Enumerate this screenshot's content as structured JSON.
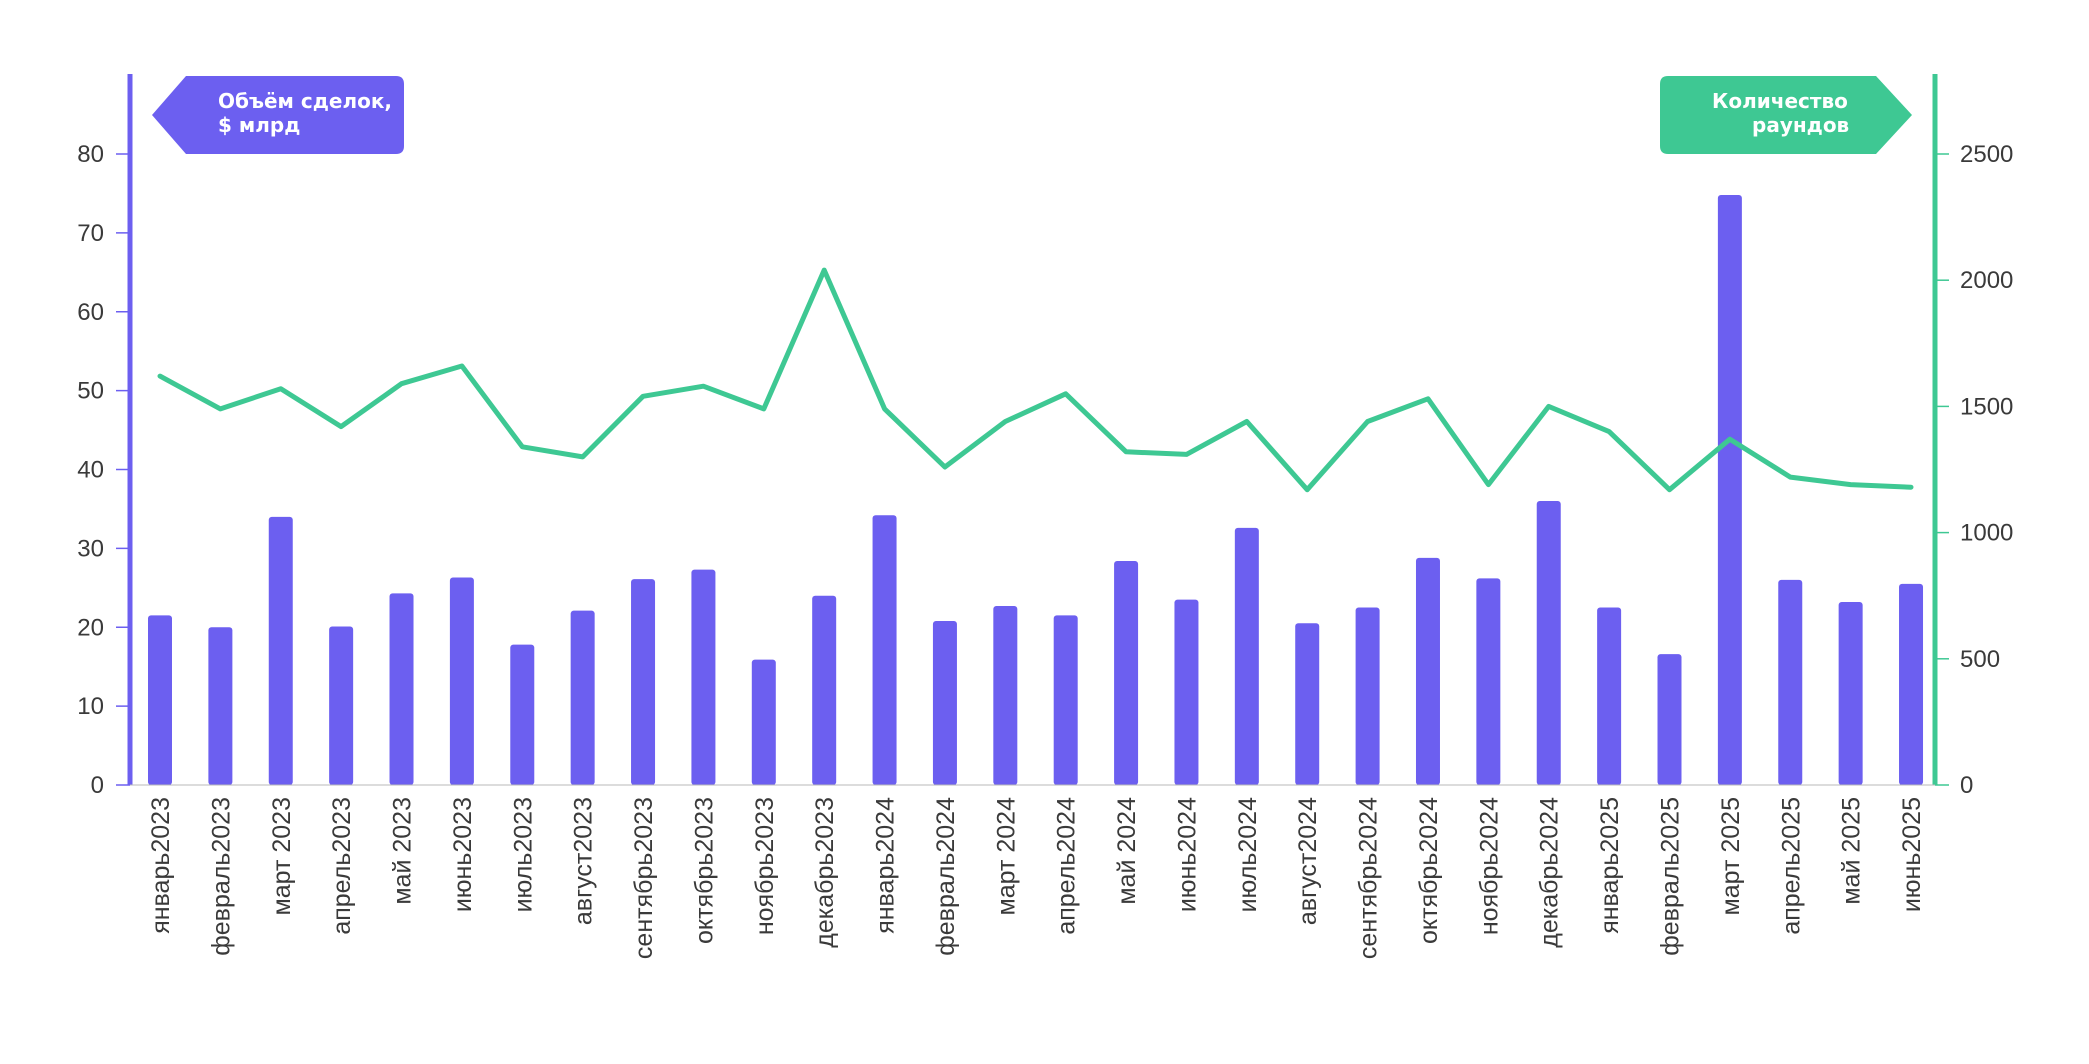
{
  "chart_data": {
    "type": "bar+line",
    "categories": [
      "январь2023",
      "февраль2023",
      "март 2023",
      "апрель2023",
      "май 2023",
      "июнь2023",
      "июль2023",
      "август2023",
      "сентябрь2023",
      "октябрь2023",
      "ноябрь2023",
      "декабрь2023",
      "январь2024",
      "февраль2024",
      "март 2024",
      "апрель2024",
      "май 2024",
      "июнь2024",
      "июль2024",
      "август2024",
      "сентябрь2024",
      "октябрь2024",
      "ноябрь2024",
      "декабрь2024",
      "январь2025",
      "февраль2025",
      "март 2025",
      "апрель2025",
      "май 2025",
      "июнь2025"
    ],
    "series": [
      {
        "name": "Объём сделок, $ млрд",
        "type": "bar",
        "axis": "left",
        "color": "#6c5ff0",
        "values": [
          21.5,
          20.0,
          34.0,
          20.1,
          24.3,
          26.3,
          17.8,
          22.1,
          26.1,
          27.3,
          15.9,
          24.0,
          34.2,
          20.8,
          22.7,
          21.5,
          28.4,
          23.5,
          32.6,
          20.5,
          22.5,
          28.8,
          26.2,
          36.0,
          22.5,
          16.6,
          74.8,
          26.0,
          23.2,
          25.5
        ]
      },
      {
        "name": "Количество раундов",
        "type": "line",
        "axis": "right",
        "color": "#3ec893",
        "values": [
          1620,
          1490,
          1570,
          1420,
          1590,
          1660,
          1340,
          1300,
          1540,
          1580,
          1490,
          2040,
          1490,
          1260,
          1440,
          1550,
          1320,
          1310,
          1440,
          1170,
          1440,
          1530,
          1190,
          1500,
          1400,
          1170,
          1370,
          1220,
          1190,
          1180
        ]
      }
    ],
    "y_left": {
      "lim": [
        0,
        90
      ],
      "ticks": [
        "0",
        "10",
        "20",
        "30",
        "40",
        "50",
        "60",
        "70",
        "80"
      ],
      "label": "Объём сделок, $ млрд"
    },
    "y_right": {
      "lim": [
        0,
        2800
      ],
      "ticks": [
        "0",
        "500",
        "1000",
        "1500",
        "2000",
        "2500"
      ],
      "label": "Количество раундов"
    },
    "grid": false,
    "left_label": {
      "line1": "Объём сделок,",
      "line2": "$ млрд"
    },
    "right_label": {
      "line1": "Количество",
      "line2": "раундов"
    }
  }
}
